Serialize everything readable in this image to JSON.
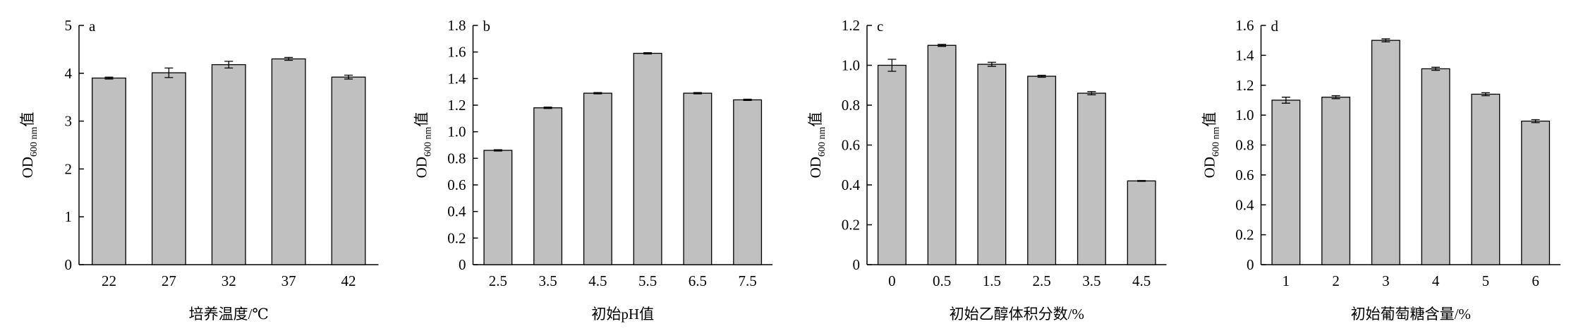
{
  "chart_data": [
    {
      "type": "bar",
      "label": "a",
      "xlabel": "培养温度/℃",
      "ylabel": {
        "main": "OD",
        "sub": "600 nm",
        "suffix": "值"
      },
      "categories": [
        "22",
        "27",
        "32",
        "37",
        "42"
      ],
      "values": [
        3.9,
        4.01,
        4.18,
        4.3,
        3.92
      ],
      "errors": [
        0.02,
        0.1,
        0.07,
        0.03,
        0.04
      ],
      "color": "#c0c0c0",
      "ylim": [
        0,
        5
      ],
      "yticks": [
        0,
        1,
        2,
        3,
        4,
        5
      ]
    },
    {
      "type": "bar",
      "label": "b",
      "xlabel": "初始pH值",
      "ylabel": {
        "main": "OD",
        "sub": "600 nm",
        "suffix": "值"
      },
      "categories": [
        "2.5",
        "3.5",
        "4.5",
        "5.5",
        "6.5",
        "7.5"
      ],
      "values": [
        0.86,
        1.18,
        1.29,
        1.59,
        1.29,
        1.24
      ],
      "errors": [
        0.005,
        0.005,
        0.005,
        0.005,
        0.005,
        0.005
      ],
      "color": "#c0c0c0",
      "ylim": [
        0,
        1.8
      ],
      "yticks": [
        0,
        0.2,
        0.4,
        0.6,
        0.8,
        {
          "value": 1,
          "label": "1.0"
        },
        1.2,
        1.4,
        1.6,
        1.8
      ]
    },
    {
      "type": "bar",
      "label": "c",
      "xlabel": "初始乙醇体积分数/%",
      "ylabel": {
        "main": "OD",
        "sub": "600 nm",
        "suffix": "值"
      },
      "categories": [
        "0",
        "0.5",
        "1.5",
        "2.5",
        "3.5",
        "4.5"
      ],
      "values": [
        1.0,
        1.1,
        1.005,
        0.945,
        0.86,
        0.42
      ],
      "errors": [
        0.03,
        0.005,
        0.01,
        0.005,
        0.008,
        0.002
      ],
      "color": "#c0c0c0",
      "ylim": [
        0,
        1.2
      ],
      "yticks": [
        0,
        0.2,
        0.4,
        0.6,
        0.8,
        {
          "value": 1,
          "label": "1.0"
        },
        1.2
      ]
    },
    {
      "type": "bar",
      "label": "d",
      "xlabel": "初始葡萄糖含量/%",
      "ylabel": {
        "main": "OD",
        "sub": "600 nm",
        "suffix": "值"
      },
      "categories": [
        "1",
        "2",
        "3",
        "4",
        "5",
        "6"
      ],
      "values": [
        1.1,
        1.12,
        1.5,
        1.31,
        1.14,
        0.96
      ],
      "errors": [
        0.02,
        0.01,
        0.01,
        0.01,
        0.01,
        0.01
      ],
      "color": "#c0c0c0",
      "ylim": [
        0,
        1.6
      ],
      "yticks": [
        0,
        0.2,
        0.4,
        0.6,
        0.8,
        {
          "value": 1,
          "label": "1.0"
        },
        1.2,
        1.4,
        1.6
      ]
    }
  ]
}
